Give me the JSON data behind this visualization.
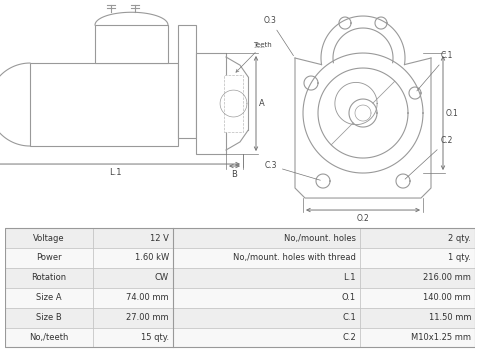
{
  "bg_color": "#ffffff",
  "lc": "#999999",
  "lc_dim": "#777777",
  "lw": 0.8,
  "rows": [
    [
      "Voltage",
      "12 V",
      "No,/mount. holes",
      "2 qty."
    ],
    [
      "Power",
      "1.60 kW",
      "No,/mount. holes with thread",
      "1 qty."
    ],
    [
      "Rotation",
      "CW",
      "L.1",
      "216.00 mm"
    ],
    [
      "Size A",
      "74.00 mm",
      "O.1",
      "140.00 mm"
    ],
    [
      "Size B",
      "27.00 mm",
      "C.1",
      "11.50 mm"
    ],
    [
      "No,/teeth",
      "15 qty.",
      "C.2",
      "M10x1.25 mm"
    ]
  ],
  "table_bg_odd": "#eeeeee",
  "table_bg_even": "#f8f8f8",
  "table_border": "#bbbbbb"
}
